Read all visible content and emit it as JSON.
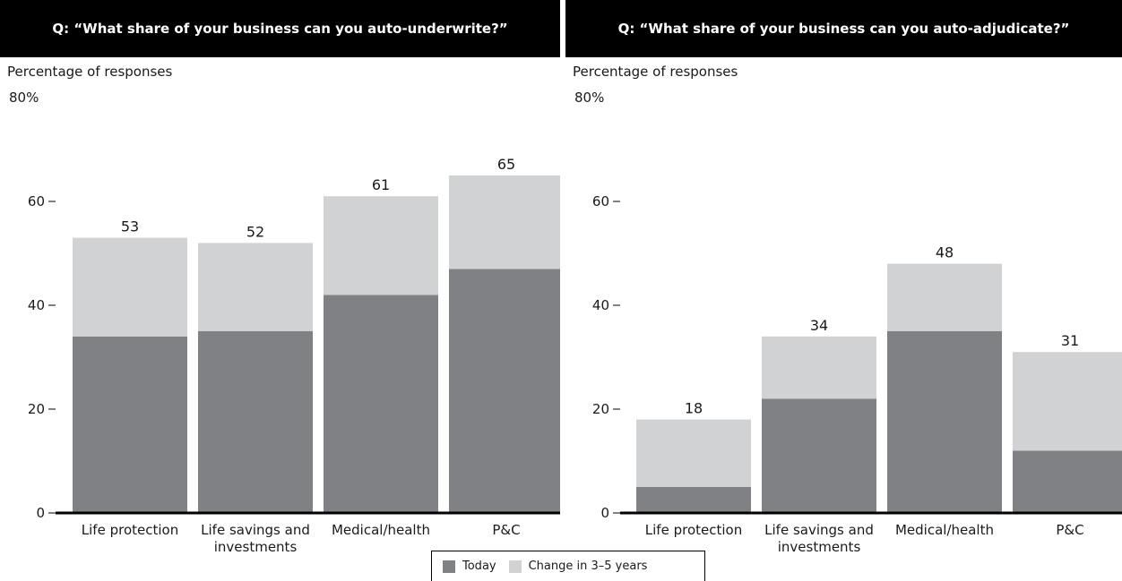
{
  "colors": {
    "today": "#808184",
    "change": "#d1d2d3",
    "header_bg": "#000000",
    "axis": "#000000"
  },
  "legend": {
    "today_label": "Today",
    "change_label": "Change in 3–5 years"
  },
  "chart_data": [
    {
      "type": "bar",
      "stacked": true,
      "title": "Q: “What share of your business can you auto-underwrite?”",
      "ylabel": "Percentage of responses",
      "ylim": [
        0,
        80
      ],
      "yticks": [
        "0",
        "20",
        "40",
        "60",
        "80%"
      ],
      "categories": [
        "Life protection",
        "Life savings and investments",
        "Medical/health",
        "P&C"
      ],
      "series": [
        {
          "name": "Today",
          "values": [
            34,
            35,
            42,
            47
          ]
        },
        {
          "name": "Change in 3–5 years",
          "values": [
            19,
            17,
            19,
            18
          ]
        }
      ],
      "totals": [
        53,
        52,
        61,
        65
      ]
    },
    {
      "type": "bar",
      "stacked": true,
      "title": "Q: “What share of your business can you auto-adjudicate?”",
      "ylabel": "Percentage of responses",
      "ylim": [
        0,
        80
      ],
      "yticks": [
        "0",
        "20",
        "40",
        "60",
        "80%"
      ],
      "categories": [
        "Life protection",
        "Life savings and investments",
        "Medical/health",
        "P&C"
      ],
      "series": [
        {
          "name": "Today",
          "values": [
            5,
            22,
            35,
            12
          ]
        },
        {
          "name": "Change in 3–5 years",
          "values": [
            13,
            12,
            13,
            19
          ]
        }
      ],
      "totals": [
        18,
        34,
        48,
        31
      ]
    }
  ]
}
